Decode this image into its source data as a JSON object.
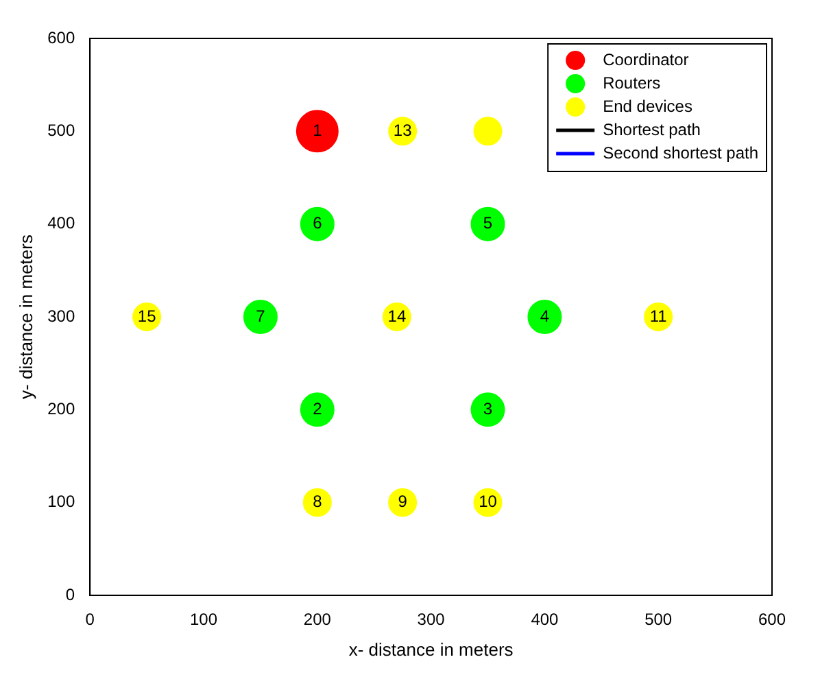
{
  "chart_data": {
    "type": "scatter",
    "xlabel": "x- distance in meters",
    "ylabel": "y- distance in meters",
    "xlim": [
      0,
      600
    ],
    "ylim": [
      0,
      600
    ],
    "xticks": [
      0,
      100,
      200,
      300,
      400,
      500,
      600
    ],
    "yticks": [
      0,
      100,
      200,
      300,
      400,
      500,
      600
    ],
    "grid": false,
    "legend": "top right",
    "marker": "circle",
    "series": [
      {
        "name": "Coordinator",
        "color": "#ff0000",
        "x": [
          200
        ],
        "values": [
          500
        ]
      },
      {
        "name": "Routers",
        "color": "#00ff00",
        "x": [
          200,
          350,
          150,
          400,
          200,
          350
        ],
        "values": [
          400,
          400,
          300,
          300,
          200,
          200
        ]
      },
      {
        "name": "End devices",
        "color": "#ffff00",
        "x": [
          275,
          350,
          50,
          270,
          500,
          200,
          275,
          350
        ],
        "values": [
          500,
          500,
          300,
          300,
          300,
          100,
          100,
          100
        ]
      },
      {
        "name": "Shortest path",
        "type": "line",
        "color": "#000000"
      },
      {
        "name": "Second shortest path",
        "type": "line",
        "color": "#0000ff"
      }
    ],
    "annotations": [
      {
        "text": "1",
        "x": 200,
        "y": 500
      },
      {
        "text": "13",
        "x": 275,
        "y": 500
      },
      {
        "text": "6",
        "x": 200,
        "y": 400
      },
      {
        "text": "5",
        "x": 350,
        "y": 400
      },
      {
        "text": "15",
        "x": 50,
        "y": 300
      },
      {
        "text": "7",
        "x": 150,
        "y": 300
      },
      {
        "text": "14",
        "x": 270,
        "y": 300
      },
      {
        "text": "4",
        "x": 400,
        "y": 300
      },
      {
        "text": "11",
        "x": 500,
        "y": 300
      },
      {
        "text": "2",
        "x": 200,
        "y": 200
      },
      {
        "text": "3",
        "x": 350,
        "y": 200
      },
      {
        "text": "8",
        "x": 200,
        "y": 100
      },
      {
        "text": "9",
        "x": 275,
        "y": 100
      },
      {
        "text": "10",
        "x": 350,
        "y": 100
      }
    ]
  }
}
